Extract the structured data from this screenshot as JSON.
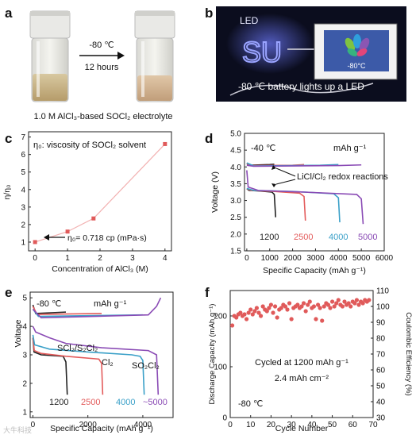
{
  "panel_a": {
    "letter": "a",
    "arrow_top": "-80 ℃",
    "arrow_bottom": "12 hours",
    "caption": "1.0 M AlCl₃-based SOCl₂ electrolyte"
  },
  "panel_b": {
    "letter": "b",
    "led_label": "LED",
    "neon_text": "SU",
    "screen_temp": "-80°C",
    "caption": "-80 ℃ battery lights up a LED"
  },
  "panel_c": {
    "letter": "c",
    "legend_text": "η₀: viscosity of SOCl₂ solvent",
    "annotation": "η₀= 0.718 cp (mPa·s)",
    "color": "#e05a5a",
    "line_color": "#f2b0b0"
  },
  "panel_d": {
    "letter": "d",
    "temp": "-40 ℃",
    "unit_label": "mAh g⁻¹",
    "annotation": "LiCl/Cl₂ redox reactions",
    "capacity_labels": [
      {
        "text": "1200",
        "color": "#222222"
      },
      {
        "text": "2500",
        "color": "#e35b5b"
      },
      {
        "text": "4000",
        "color": "#3aa0c8"
      },
      {
        "text": "5000",
        "color": "#8a4bb5"
      }
    ]
  },
  "panel_e": {
    "letter": "e",
    "temp": "-80 ℃",
    "unit_label": "mAh g⁻¹",
    "species_1": "SCl₂/S₂Cl₂",
    "species_2": "Cl₂",
    "species_3": "SO₂Cl₂",
    "capacity_labels": [
      {
        "text": "1200",
        "color": "#222222"
      },
      {
        "text": "2500",
        "color": "#e35b5b"
      },
      {
        "text": "4000",
        "color": "#3aa0c8"
      },
      {
        "text": "~5000",
        "color": "#8a4bb5"
      }
    ]
  },
  "panel_f": {
    "letter": "f",
    "note_1": "Cycled at 1200 mAh g⁻¹",
    "note_2": "2.4 mAh cm⁻²",
    "temp": "-80 ℃",
    "color": "#e05a5a"
  },
  "watermark": "大牛科技",
  "chart_data": [
    {
      "id": "c",
      "type": "line",
      "xlabel": "Concentration of AlCl₃ (M)",
      "ylabel": "η/η₀",
      "x": [
        0,
        1,
        1.8,
        4
      ],
      "y": [
        1.0,
        1.6,
        2.35,
        6.6
      ],
      "xlim": [
        -0.2,
        4.2
      ],
      "ylim": [
        0.5,
        7.3
      ],
      "xticks": [
        0,
        1,
        2,
        3,
        4
      ],
      "yticks": [
        1,
        2,
        3,
        4,
        5,
        6,
        7
      ]
    },
    {
      "id": "d",
      "type": "line",
      "xlabel": "Specific Capacity (mAh g⁻¹)",
      "ylabel": "Voltage (V)",
      "xlim": [
        -100,
        6000
      ],
      "ylim": [
        1.5,
        5.0
      ],
      "xticks": [
        0,
        1000,
        2000,
        3000,
        4000,
        5000,
        6000
      ],
      "yticks": [
        1.5,
        2.0,
        2.5,
        3.0,
        3.5,
        4.0,
        4.5,
        5.0
      ],
      "series": [
        {
          "color": "#222222",
          "capacity": 1200,
          "discharge": [
            [
              0,
              3.35
            ],
            [
              100,
              3.3
            ],
            [
              600,
              3.28
            ],
            [
              1100,
              3.25
            ],
            [
              1200,
              3.18
            ],
            [
              1260,
              2.5
            ]
          ],
          "charge": [
            [
              0,
              4.1
            ],
            [
              100,
              4.05
            ],
            [
              1000,
              4.07
            ],
            [
              1200,
              4.08
            ]
          ]
        },
        {
          "color": "#e35b5b",
          "capacity": 2500,
          "discharge": [
            [
              0,
              3.35
            ],
            [
              200,
              3.3
            ],
            [
              1200,
              3.27
            ],
            [
              2300,
              3.22
            ],
            [
              2500,
              3.12
            ],
            [
              2560,
              2.4
            ]
          ],
          "charge": [
            [
              0,
              4.1
            ],
            [
              200,
              4.04
            ],
            [
              2000,
              4.05
            ],
            [
              2500,
              4.07
            ]
          ]
        },
        {
          "color": "#3aa0c8",
          "capacity": 4000,
          "discharge": [
            [
              0,
              3.36
            ],
            [
              300,
              3.3
            ],
            [
              2000,
              3.27
            ],
            [
              3800,
              3.2
            ],
            [
              4000,
              3.08
            ],
            [
              4060,
              2.35
            ]
          ],
          "charge": [
            [
              0,
              4.12
            ],
            [
              300,
              4.03
            ],
            [
              3200,
              4.05
            ],
            [
              4000,
              4.07
            ]
          ]
        },
        {
          "color": "#8a4bb5",
          "capacity": 5000,
          "discharge": [
            [
              0,
              3.9
            ],
            [
              60,
              3.4
            ],
            [
              500,
              3.3
            ],
            [
              2500,
              3.25
            ],
            [
              4800,
              3.18
            ],
            [
              5000,
              3.05
            ],
            [
              5080,
              2.3
            ]
          ],
          "charge": [
            [
              0,
              4.05
            ],
            [
              300,
              4.02
            ],
            [
              4000,
              4.04
            ],
            [
              5000,
              4.06
            ]
          ]
        }
      ]
    },
    {
      "id": "e",
      "type": "line",
      "xlabel": "Specific Capacity (mAh g⁻¹)",
      "ylabel": "Voltage",
      "xlim": [
        -100,
        5100
      ],
      "ylim": [
        0.8,
        5.2
      ],
      "xticks": [
        0,
        2000,
        4000
      ],
      "yticks": [
        1,
        2,
        3,
        4,
        5
      ],
      "series": [
        {
          "color": "#222222",
          "capacity": 1200,
          "discharge": [
            [
              0,
              3.6
            ],
            [
              40,
              3.1
            ],
            [
              300,
              3.0
            ],
            [
              1100,
              2.95
            ],
            [
              1200,
              2.75
            ],
            [
              1250,
              1.6
            ]
          ],
          "charge": [
            [
              0,
              4.75
            ],
            [
              100,
              4.45
            ],
            [
              1200,
              4.5
            ]
          ]
        },
        {
          "color": "#e35b5b",
          "capacity": 2500,
          "discharge": [
            [
              0,
              3.6
            ],
            [
              50,
              3.15
            ],
            [
              300,
              3.05
            ],
            [
              1200,
              2.95
            ],
            [
              2400,
              2.85
            ],
            [
              2500,
              2.7
            ],
            [
              2540,
              1.6
            ]
          ],
          "charge": [
            [
              0,
              4.7
            ],
            [
              150,
              4.42
            ],
            [
              2500,
              4.45
            ]
          ]
        },
        {
          "color": "#3aa0c8",
          "capacity": 4000,
          "discharge": [
            [
              0,
              3.7
            ],
            [
              60,
              3.35
            ],
            [
              600,
              3.2
            ],
            [
              2000,
              3.1
            ],
            [
              3600,
              3.0
            ],
            [
              3900,
              2.95
            ],
            [
              4000,
              2.8
            ],
            [
              4050,
              1.6
            ]
          ],
          "charge": [
            [
              0,
              4.6
            ],
            [
              200,
              4.35
            ],
            [
              4000,
              4.4
            ]
          ]
        },
        {
          "color": "#8a4bb5",
          "capacity": 5000,
          "discharge": [
            [
              0,
              4.0
            ],
            [
              100,
              3.8
            ],
            [
              600,
              3.6
            ],
            [
              1200,
              3.4
            ],
            [
              2500,
              3.25
            ],
            [
              4200,
              3.15
            ],
            [
              4500,
              3.0
            ],
            [
              4560,
              1.6
            ]
          ],
          "charge": [
            [
              0,
              4.6
            ],
            [
              300,
              4.3
            ],
            [
              4200,
              4.4
            ],
            [
              4500,
              4.7
            ],
            [
              4650,
              5.0
            ]
          ]
        }
      ]
    },
    {
      "id": "f",
      "type": "scatter",
      "xlabel": "Cycle Number",
      "ylabel": "Discharge Capacity (mAh g⁻¹)",
      "ylabel_right": "Coulombic Efficiency (%)",
      "xlim": [
        0,
        70
      ],
      "ylim": [
        0,
        250
      ],
      "ylim_right": [
        30,
        110
      ],
      "xticks": [
        0,
        10,
        20,
        30,
        40,
        50,
        60,
        70
      ],
      "yticks": [
        0,
        100,
        200
      ],
      "yticks_right": [
        30,
        40,
        50,
        60,
        70,
        80,
        90,
        100,
        110
      ],
      "series": [
        {
          "name": "coulombic_efficiency",
          "axis": "right",
          "x": [
            1,
            2,
            3,
            4,
            5,
            6,
            7,
            8,
            9,
            10,
            11,
            12,
            13,
            14,
            15,
            16,
            17,
            18,
            19,
            20,
            21,
            22,
            23,
            24,
            25,
            26,
            27,
            28,
            29,
            30,
            31,
            32,
            33,
            34,
            35,
            36,
            37,
            38,
            39,
            40,
            41,
            42,
            43,
            44,
            45,
            46,
            47,
            48,
            49,
            50,
            51,
            52,
            53,
            54,
            55,
            56,
            57,
            58,
            59,
            60,
            61,
            62,
            63,
            64,
            65,
            66,
            67,
            68
          ],
          "y": [
            88,
            94,
            93,
            95,
            96,
            94,
            95,
            92,
            96,
            98,
            95,
            97,
            99,
            96,
            94,
            100,
            98,
            97,
            99,
            101,
            96,
            100,
            93,
            98,
            99,
            101,
            100,
            98,
            102,
            92,
            99,
            100,
            101,
            99,
            100,
            102,
            97,
            101,
            103,
            99,
            100,
            92,
            101,
            99,
            91,
            100,
            102,
            101,
            99,
            103,
            100,
            102,
            104,
            101,
            100,
            103,
            101,
            102,
            100,
            103,
            102,
            104,
            101,
            103,
            102,
            104,
            103,
            104
          ]
        }
      ]
    }
  ]
}
